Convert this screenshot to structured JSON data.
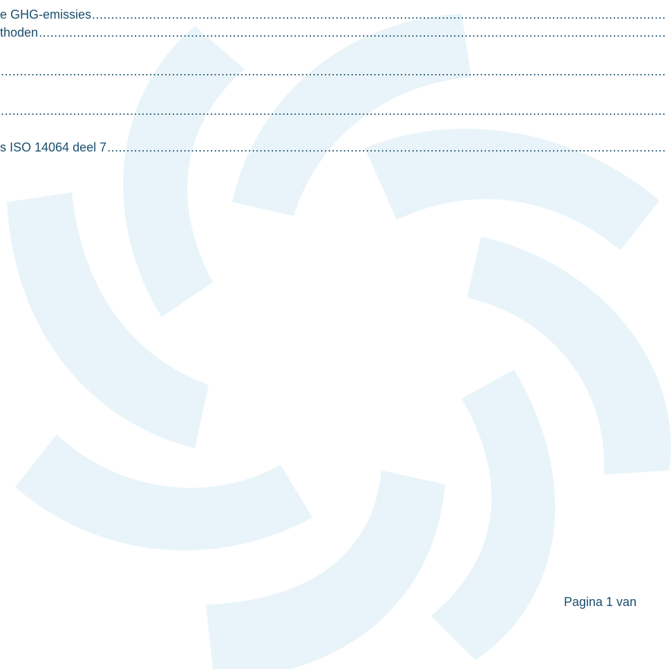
{
  "toc": {
    "entries": [
      {
        "text": "e GHG-emissies"
      },
      {
        "text": "thoden "
      },
      {
        "text": ""
      },
      {
        "text": ""
      },
      {
        "text": "s ISO 14064 deel 7"
      }
    ]
  },
  "footer": {
    "page_label": "Pagina 1 van"
  },
  "watermark": {
    "color": "#e8f4f9",
    "description_icon": "pinwheel-logo-watermark"
  }
}
